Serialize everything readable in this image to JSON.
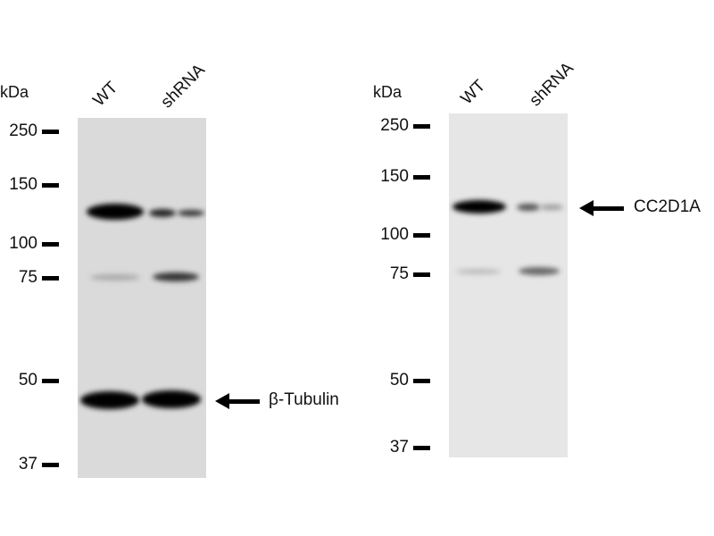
{
  "panels": [
    {
      "unit": "kDa",
      "lanes": [
        "WT",
        "shRNA"
      ],
      "markers": [
        "250",
        "150",
        "100",
        "75",
        "50",
        "37"
      ],
      "target": "β-Tubulin"
    },
    {
      "unit": "kDa",
      "lanes": [
        "WT",
        "shRNA"
      ],
      "markers": [
        "250",
        "150",
        "100",
        "75",
        "50",
        "37"
      ],
      "target": "CC2D1A"
    }
  ]
}
